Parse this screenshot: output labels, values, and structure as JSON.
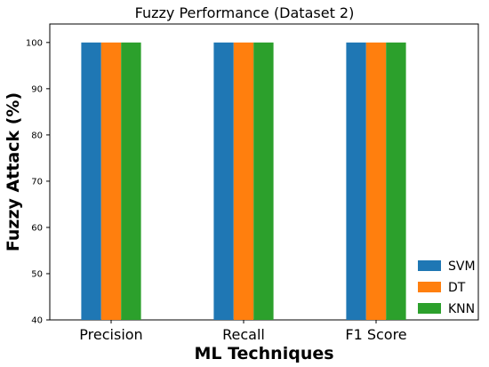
{
  "chart_data": {
    "type": "bar",
    "title": "Fuzzy Performance (Dataset 2)",
    "xlabel": "ML Techniques",
    "ylabel": "Fuzzy Attack (%)",
    "categories": [
      "Precision",
      "Recall",
      "F1 Score"
    ],
    "series": [
      {
        "name": "SVM",
        "color": "#1f77b4",
        "values": [
          100,
          100,
          100
        ]
      },
      {
        "name": "DT",
        "color": "#ff7f0e",
        "values": [
          100,
          100,
          100
        ]
      },
      {
        "name": "KNN",
        "color": "#2ca02c",
        "values": [
          100,
          100,
          100
        ]
      }
    ],
    "ylim": [
      40,
      104
    ],
    "yticks": [
      40,
      50,
      60,
      70,
      80,
      90,
      100
    ],
    "grid": false,
    "legend_position": "lower-right"
  }
}
